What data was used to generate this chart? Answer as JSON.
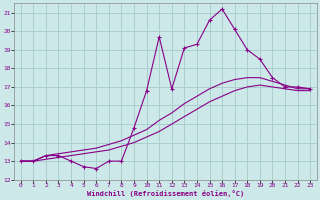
{
  "xlabel": "Windchill (Refroidissement éolien,°C)",
  "background_color": "#cce8e8",
  "grid_color": "#aacece",
  "line_color": "#880088",
  "xlim": [
    -0.5,
    23.5
  ],
  "ylim": [
    12,
    21.5
  ],
  "xticks": [
    0,
    1,
    2,
    3,
    4,
    5,
    6,
    7,
    8,
    9,
    10,
    11,
    12,
    13,
    14,
    15,
    16,
    17,
    18,
    19,
    20,
    21,
    22,
    23
  ],
  "yticks": [
    12,
    13,
    14,
    15,
    16,
    17,
    18,
    19,
    20,
    21
  ],
  "line1_x": [
    0,
    1,
    2,
    3,
    4,
    5,
    6,
    7,
    8,
    9,
    10,
    11,
    12,
    13,
    14,
    15,
    16,
    17,
    18,
    19,
    20,
    21,
    22,
    23
  ],
  "line1_y": [
    13.0,
    13.0,
    13.3,
    13.3,
    13.0,
    12.7,
    12.6,
    13.0,
    13.0,
    14.8,
    16.8,
    19.7,
    16.9,
    19.1,
    19.3,
    20.6,
    21.2,
    20.1,
    19.0,
    18.5,
    17.5,
    17.0,
    17.0,
    16.9
  ],
  "line2_x": [
    0,
    1,
    2,
    3,
    4,
    5,
    6,
    7,
    8,
    9,
    10,
    11,
    12,
    13,
    14,
    15,
    16,
    17,
    18,
    19,
    20,
    21,
    22,
    23
  ],
  "line2_y": [
    13.0,
    13.0,
    13.3,
    13.4,
    13.5,
    13.6,
    13.7,
    13.9,
    14.1,
    14.4,
    14.7,
    15.2,
    15.6,
    16.1,
    16.5,
    16.9,
    17.2,
    17.4,
    17.5,
    17.5,
    17.3,
    17.1,
    16.9,
    16.9
  ],
  "line3_x": [
    0,
    1,
    2,
    3,
    4,
    5,
    6,
    7,
    8,
    9,
    10,
    11,
    12,
    13,
    14,
    15,
    16,
    17,
    18,
    19,
    20,
    21,
    22,
    23
  ],
  "line3_y": [
    13.0,
    13.0,
    13.1,
    13.2,
    13.3,
    13.4,
    13.5,
    13.6,
    13.8,
    14.0,
    14.3,
    14.6,
    15.0,
    15.4,
    15.8,
    16.2,
    16.5,
    16.8,
    17.0,
    17.1,
    17.0,
    16.9,
    16.8,
    16.8
  ]
}
